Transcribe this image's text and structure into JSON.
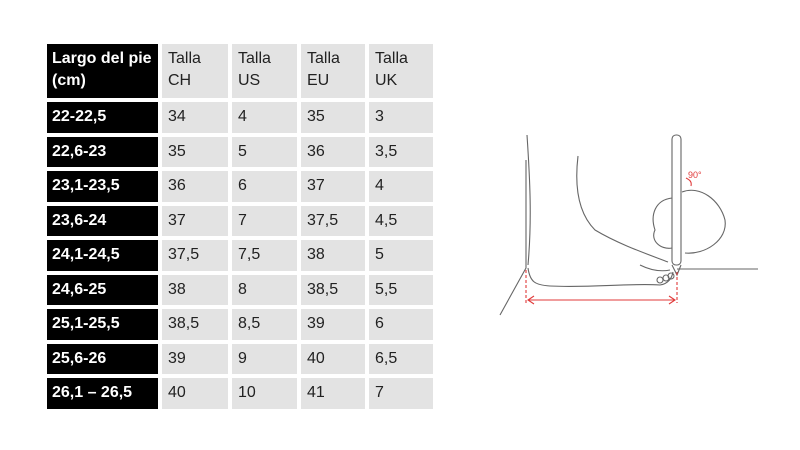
{
  "table": {
    "headers": [
      "Largo del pie (cm)",
      "Talla CH",
      "Talla US",
      "Talla EU",
      "Talla UK"
    ],
    "rows": [
      [
        "22-22,5",
        "34",
        "4",
        "35",
        "3"
      ],
      [
        "22,6-23",
        "35",
        "5",
        "36",
        "3,5"
      ],
      [
        "23,1-23,5",
        "36",
        "6",
        "37",
        "4"
      ],
      [
        "23,6-24",
        "37",
        "7",
        "37,5",
        "4,5"
      ],
      [
        "24,1-24,5",
        "37,5",
        "7,5",
        "38",
        "5"
      ],
      [
        "24,6-25",
        "38",
        "8",
        "38,5",
        "5,5"
      ],
      [
        "25,1-25,5",
        "38,5",
        "8,5",
        "39",
        "6"
      ],
      [
        "25,6-26",
        "39",
        "9",
        "40",
        "6,5"
      ],
      [
        "26,1 – 26,5",
        "40",
        "10",
        "41",
        "7"
      ]
    ]
  },
  "illustration": {
    "angle_label": "90°",
    "accent_color": "#e03a3a"
  }
}
